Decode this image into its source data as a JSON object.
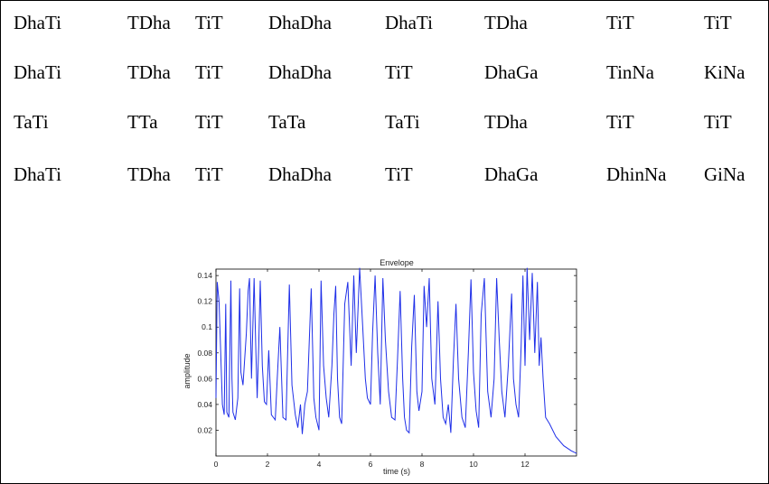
{
  "bol_table": {
    "rows": [
      [
        "DhaTi",
        "TDha",
        "TiT",
        "DhaDha",
        "DhaTi",
        "TDha",
        "TiT",
        "TiT"
      ],
      [
        "DhaTi",
        "TDha",
        "TiT",
        "DhaDha",
        "TiT",
        "DhaGa",
        "TinNa",
        "KiNa"
      ],
      [
        "TaTi",
        "TTa",
        "TiT",
        "TaTa",
        "TaTi",
        "TDha",
        "TiT",
        "TiT"
      ],
      [
        "DhaTi",
        "TDha",
        "TiT",
        "DhaDha",
        "TiT",
        "DhaGa",
        "DhinNa",
        "GiNa"
      ]
    ]
  },
  "chart_data": {
    "type": "line",
    "title": "Envelope",
    "xlabel": "time (s)",
    "ylabel": "amplitude",
    "xlim": [
      0,
      14
    ],
    "ylim": [
      0,
      0.145
    ],
    "xticks": [
      0,
      2,
      4,
      6,
      8,
      10,
      12
    ],
    "yticks": [
      0.02,
      0.04,
      0.06,
      0.08,
      0.1,
      0.12,
      0.14
    ],
    "grid": false,
    "color": "#1f2fe8",
    "series": [
      {
        "x": [
          0.0,
          0.05,
          0.12,
          0.25,
          0.32,
          0.38,
          0.42,
          0.5,
          0.58,
          0.62,
          0.66,
          0.75,
          0.85,
          0.92,
          0.97,
          1.05,
          1.18,
          1.25,
          1.3,
          1.38,
          1.48,
          1.55,
          1.6,
          1.66,
          1.72,
          1.8,
          1.88,
          1.96,
          2.05,
          2.15,
          2.3,
          2.38,
          2.48,
          2.6,
          2.72,
          2.85,
          2.95,
          3.08,
          3.18,
          3.28,
          3.35,
          3.45,
          3.55,
          3.62,
          3.7,
          3.8,
          3.88,
          4.0,
          4.08,
          4.18,
          4.28,
          4.38,
          4.5,
          4.58,
          4.65,
          4.72,
          4.8,
          4.88,
          5.0,
          5.12,
          5.25,
          5.35,
          5.45,
          5.58,
          5.7,
          5.8,
          5.88,
          6.0,
          6.08,
          6.18,
          6.28,
          6.38,
          6.48,
          6.58,
          6.7,
          6.82,
          6.95,
          7.05,
          7.15,
          7.25,
          7.32,
          7.4,
          7.5,
          7.6,
          7.7,
          7.8,
          7.88,
          8.0,
          8.08,
          8.18,
          8.28,
          8.38,
          8.5,
          8.62,
          8.72,
          8.82,
          8.92,
          9.02,
          9.12,
          9.22,
          9.32,
          9.42,
          9.55,
          9.68,
          9.8,
          9.9,
          10.0,
          10.1,
          10.2,
          10.3,
          10.42,
          10.55,
          10.68,
          10.8,
          10.9,
          11.0,
          11.1,
          11.22,
          11.35,
          11.48,
          11.55,
          11.65,
          11.75,
          11.85,
          11.92,
          12.0,
          12.08,
          12.18,
          12.28,
          12.38,
          12.48,
          12.55,
          12.62,
          12.7,
          12.8,
          12.95,
          13.2,
          13.5,
          13.8,
          14.0
        ],
        "y": [
          0.045,
          0.135,
          0.12,
          0.04,
          0.032,
          0.118,
          0.034,
          0.03,
          0.136,
          0.06,
          0.034,
          0.028,
          0.045,
          0.13,
          0.065,
          0.055,
          0.095,
          0.128,
          0.138,
          0.06,
          0.138,
          0.08,
          0.045,
          0.085,
          0.136,
          0.07,
          0.042,
          0.04,
          0.082,
          0.032,
          0.028,
          0.06,
          0.1,
          0.03,
          0.028,
          0.133,
          0.055,
          0.032,
          0.022,
          0.04,
          0.017,
          0.04,
          0.05,
          0.088,
          0.13,
          0.045,
          0.03,
          0.02,
          0.136,
          0.07,
          0.045,
          0.03,
          0.07,
          0.11,
          0.132,
          0.06,
          0.03,
          0.025,
          0.118,
          0.135,
          0.07,
          0.14,
          0.08,
          0.146,
          0.1,
          0.06,
          0.045,
          0.04,
          0.095,
          0.14,
          0.08,
          0.04,
          0.138,
          0.09,
          0.05,
          0.03,
          0.028,
          0.075,
          0.128,
          0.06,
          0.03,
          0.02,
          0.018,
          0.085,
          0.125,
          0.05,
          0.035,
          0.05,
          0.132,
          0.1,
          0.138,
          0.06,
          0.04,
          0.12,
          0.06,
          0.03,
          0.025,
          0.04,
          0.018,
          0.075,
          0.118,
          0.06,
          0.03,
          0.022,
          0.08,
          0.137,
          0.065,
          0.035,
          0.022,
          0.11,
          0.138,
          0.05,
          0.03,
          0.06,
          0.138,
          0.09,
          0.05,
          0.03,
          0.07,
          0.126,
          0.06,
          0.04,
          0.03,
          0.085,
          0.14,
          0.07,
          0.146,
          0.09,
          0.142,
          0.08,
          0.135,
          0.07,
          0.092,
          0.06,
          0.03,
          0.025,
          0.015,
          0.008,
          0.004,
          0.002
        ]
      }
    ]
  }
}
